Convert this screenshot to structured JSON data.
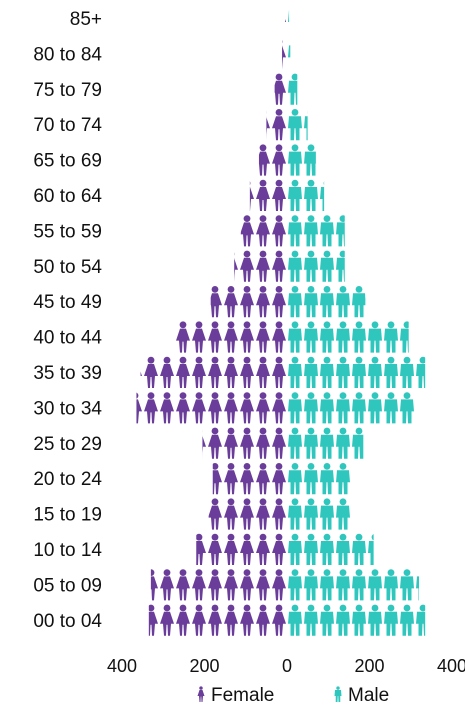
{
  "chart_data": {
    "type": "bar",
    "subtype": "pictorial-population-pyramid",
    "categories": [
      "85+",
      "80 to 84",
      "75 to 79",
      "70 to 74",
      "65 to 69",
      "60 to 64",
      "55 to 59",
      "50 to 54",
      "45 to 49",
      "40 to 44",
      "35 to 39",
      "30 to 34",
      "25 to 29",
      "20 to 24",
      "15 to 19",
      "10 to 14",
      "05 to 09",
      "00 to 04"
    ],
    "series": [
      {
        "name": "Female",
        "color": "#6a3d9a",
        "icon": "female-figure-icon",
        "values": [
          5,
          12,
          30,
          50,
          68,
          90,
          112,
          128,
          185,
          270,
          355,
          365,
          205,
          180,
          190,
          220,
          330,
          335
        ]
      },
      {
        "name": "Male",
        "color": "#2fc6bd",
        "icon": "male-figure-icon",
        "values": [
          5,
          8,
          25,
          50,
          70,
          90,
          140,
          140,
          190,
          295,
          335,
          310,
          185,
          155,
          155,
          210,
          320,
          335
        ]
      }
    ],
    "x_ticks": [
      "400",
      "200",
      "0",
      "200",
      "400"
    ],
    "xlim": [
      -400,
      400
    ],
    "legend": {
      "position": "bottom-center",
      "entries": [
        "Female",
        "Male"
      ]
    },
    "grid": false
  }
}
